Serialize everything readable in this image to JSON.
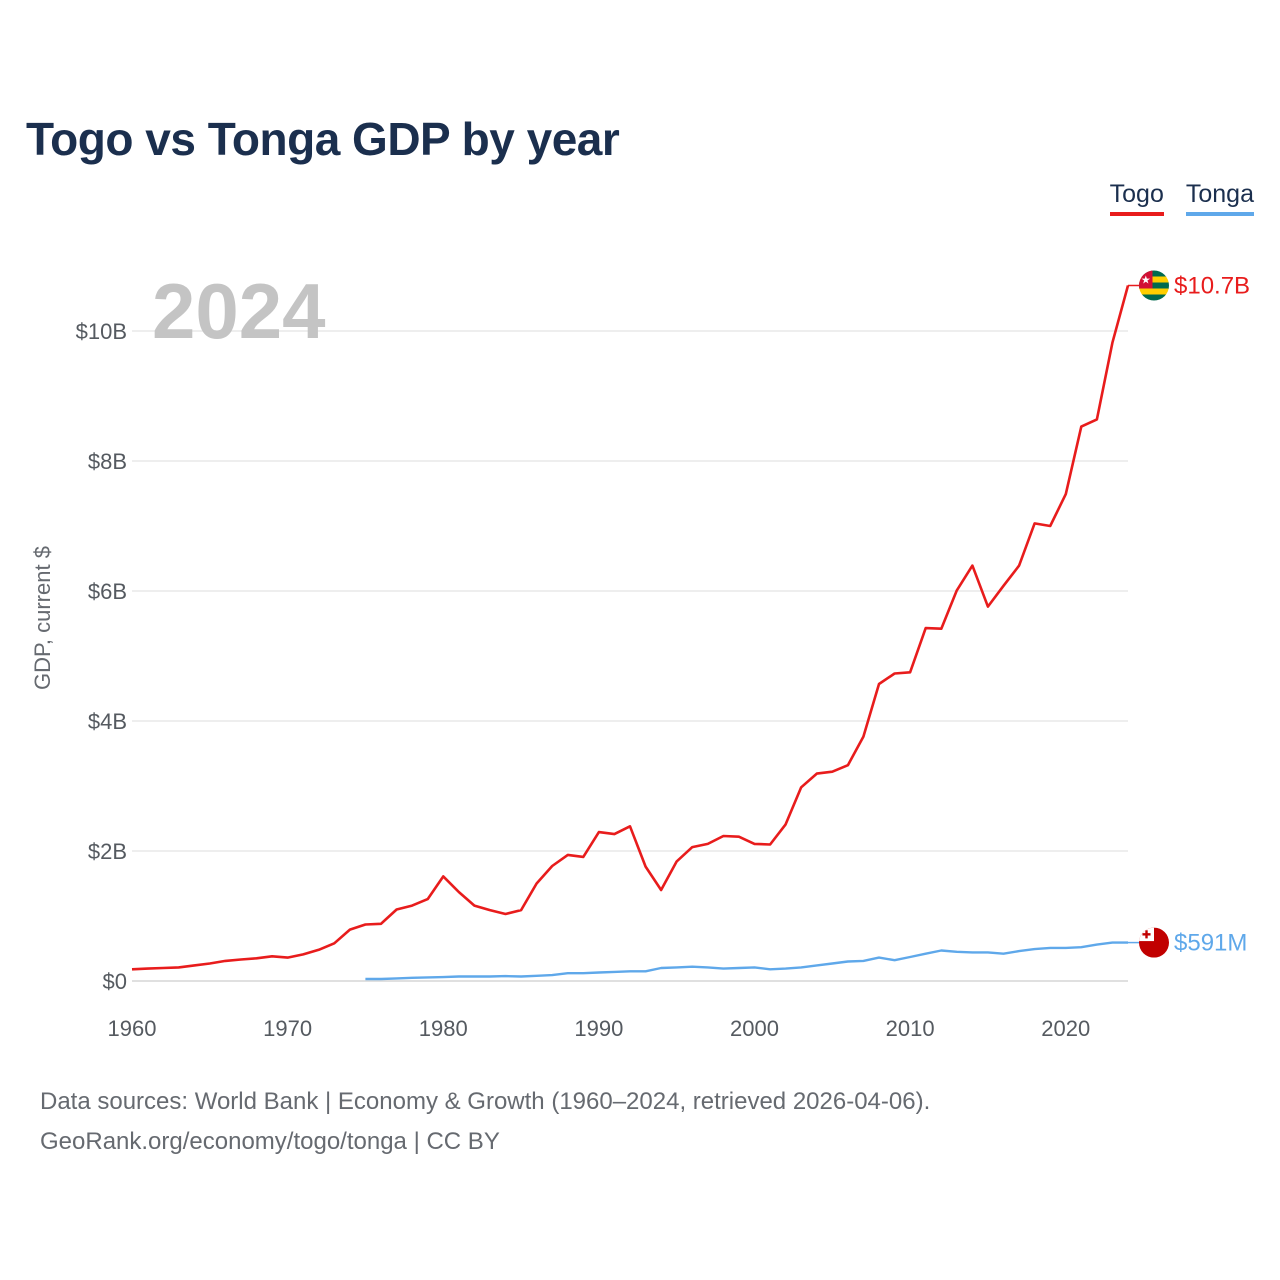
{
  "title": "Togo vs Tonga GDP by year",
  "legend": {
    "togo": "Togo",
    "tonga": "Tonga"
  },
  "source": {
    "line1": "Data sources: World Bank | Economy & Growth (1960–2024, retrieved 2026-04-06).",
    "line2": "GeoRank.org/economy/togo/tonga | CC BY"
  },
  "chart_data": {
    "type": "line",
    "title": "Togo vs Tonga GDP by year",
    "year_label": "2024",
    "xlabel": "",
    "ylabel": "GDP, current $",
    "xlim": [
      1960,
      2024
    ],
    "ylim": [
      0,
      11
    ],
    "y_unit": "billion USD",
    "x_ticks": [
      "1960",
      "1970",
      "1980",
      "1990",
      "2000",
      "2010",
      "2020"
    ],
    "x_tick_values": [
      1960,
      1970,
      1980,
      1990,
      2000,
      2010,
      2020
    ],
    "y_ticks": [
      "$0",
      "$2B",
      "$4B",
      "$6B",
      "$8B",
      "$10B"
    ],
    "y_tick_values": [
      0,
      2,
      4,
      6,
      8,
      10
    ],
    "grid": true,
    "legend_position": "top-right",
    "series": [
      {
        "name": "Togo",
        "color": "#e81c1c",
        "end_label": "$10.7B",
        "flag": "togo-flag-icon",
        "x": [
          1960,
          1961,
          1962,
          1963,
          1964,
          1965,
          1966,
          1967,
          1968,
          1969,
          1970,
          1971,
          1972,
          1973,
          1974,
          1975,
          1976,
          1977,
          1978,
          1979,
          1980,
          1981,
          1982,
          1983,
          1984,
          1985,
          1986,
          1987,
          1988,
          1989,
          1990,
          1991,
          1992,
          1993,
          1994,
          1995,
          1996,
          1997,
          1998,
          1999,
          2000,
          2001,
          2002,
          2003,
          2004,
          2005,
          2006,
          2007,
          2008,
          2009,
          2010,
          2011,
          2012,
          2013,
          2014,
          2015,
          2016,
          2017,
          2018,
          2019,
          2020,
          2021,
          2022,
          2023,
          2024
        ],
        "values": [
          0.18,
          0.19,
          0.2,
          0.21,
          0.24,
          0.27,
          0.31,
          0.33,
          0.35,
          0.38,
          0.36,
          0.41,
          0.48,
          0.58,
          0.79,
          0.87,
          0.88,
          1.1,
          1.16,
          1.26,
          1.61,
          1.37,
          1.16,
          1.09,
          1.03,
          1.09,
          1.5,
          1.77,
          1.94,
          1.91,
          2.29,
          2.26,
          2.38,
          1.76,
          1.4,
          1.84,
          2.06,
          2.11,
          2.23,
          2.22,
          2.11,
          2.1,
          2.41,
          2.98,
          3.19,
          3.22,
          3.32,
          3.76,
          4.57,
          4.73,
          4.75,
          5.43,
          5.42,
          6.01,
          6.39,
          5.76,
          6.08,
          6.39,
          7.04,
          7.0,
          7.49,
          8.53,
          8.64,
          9.82,
          10.7
        ]
      },
      {
        "name": "Tonga",
        "color": "#5fa8ea",
        "end_label": "$591M",
        "flag": "tonga-flag-icon",
        "x": [
          1975,
          1976,
          1977,
          1978,
          1979,
          1980,
          1981,
          1982,
          1983,
          1984,
          1985,
          1986,
          1987,
          1988,
          1989,
          1990,
          1991,
          1992,
          1993,
          1994,
          1995,
          1996,
          1997,
          1998,
          1999,
          2000,
          2001,
          2002,
          2003,
          2004,
          2005,
          2006,
          2007,
          2008,
          2009,
          2010,
          2011,
          2012,
          2013,
          2014,
          2015,
          2016,
          2017,
          2018,
          2019,
          2020,
          2021,
          2022,
          2023,
          2024
        ],
        "values": [
          0.03,
          0.03,
          0.04,
          0.05,
          0.055,
          0.06,
          0.07,
          0.07,
          0.07,
          0.075,
          0.07,
          0.08,
          0.09,
          0.12,
          0.12,
          0.13,
          0.14,
          0.15,
          0.15,
          0.2,
          0.21,
          0.22,
          0.21,
          0.19,
          0.2,
          0.21,
          0.18,
          0.19,
          0.21,
          0.24,
          0.27,
          0.3,
          0.31,
          0.36,
          0.32,
          0.37,
          0.42,
          0.47,
          0.45,
          0.44,
          0.44,
          0.42,
          0.46,
          0.49,
          0.51,
          0.51,
          0.52,
          0.56,
          0.59,
          0.591
        ]
      }
    ]
  }
}
